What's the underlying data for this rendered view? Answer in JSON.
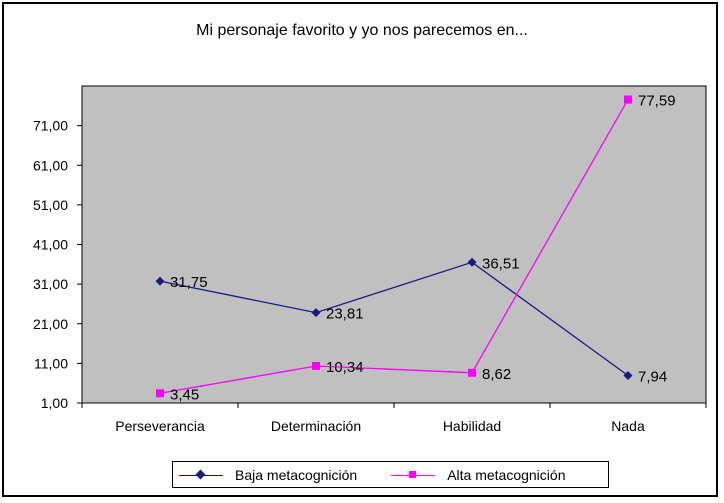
{
  "chart_data": {
    "type": "line",
    "title": "Mi personaje favorito y yo nos parecemos en...",
    "categories": [
      "Perseverancia",
      "Determinación",
      "Habilidad",
      "Nada"
    ],
    "yticks": [
      "1,00",
      "11,00",
      "21,00",
      "31,00",
      "41,00",
      "51,00",
      "61,00",
      "71,00"
    ],
    "ylim": [
      1,
      81
    ],
    "grid": false,
    "legend_position": "bottom",
    "series": [
      {
        "name": "Baja metacognición",
        "values": [
          31.75,
          23.81,
          36.51,
          7.94
        ],
        "labels": [
          "31,75",
          "23,81",
          "36,51",
          "7,94"
        ],
        "color": "#1a1a80",
        "marker": "diamond"
      },
      {
        "name": "Alta metacognición",
        "values": [
          3.45,
          10.34,
          8.62,
          77.59
        ],
        "labels": [
          "3,45",
          "10,34",
          "8,62",
          "77,59"
        ],
        "color": "#ff00ff",
        "marker": "square"
      }
    ],
    "plot_background": "#c0c0c0"
  }
}
